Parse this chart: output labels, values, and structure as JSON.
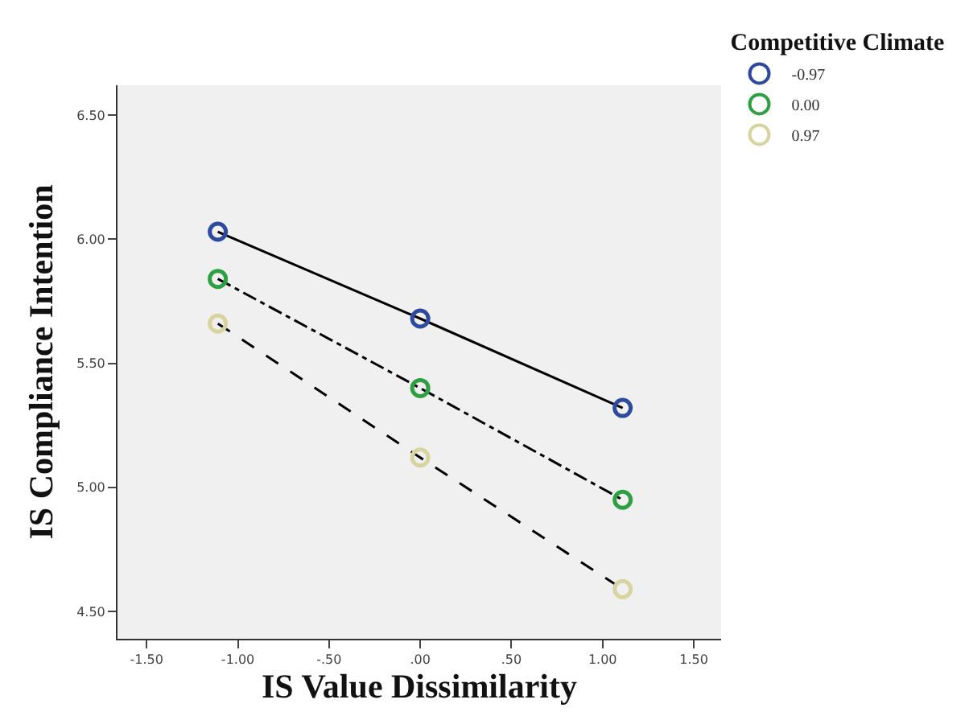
{
  "chart_data": {
    "type": "line",
    "xlabel": "IS Value Dissimilarity",
    "ylabel": "IS Compliance Intention",
    "legend_title": "Competitive Climate",
    "x": [
      -1.11,
      0,
      1.11
    ],
    "series": [
      {
        "name": "-0.97",
        "color": "#2e4a9e",
        "values": [
          6.03,
          5.68,
          5.32
        ],
        "line_style": "solid"
      },
      {
        "name": "0.00",
        "color": "#2ea043",
        "values": [
          5.84,
          5.4,
          4.95
        ],
        "line_style": "dashdot"
      },
      {
        "name": "0.97",
        "color": "#d8d4a0",
        "values": [
          5.66,
          5.12,
          4.59
        ],
        "line_style": "dashed"
      }
    ],
    "xlim": [
      -1.66,
      1.65
    ],
    "xticks": [
      {
        "value": -1.5,
        "label": "-1.50"
      },
      {
        "value": -1.0,
        "label": "-1.00"
      },
      {
        "value": -0.5,
        "label": "-.50"
      },
      {
        "value": 0,
        "label": ".00"
      },
      {
        "value": 0.5,
        "label": ".50"
      },
      {
        "value": 1.0,
        "label": "1.00"
      },
      {
        "value": 1.5,
        "label": "1.50"
      }
    ],
    "ylim": [
      4.39,
      6.62
    ],
    "yticks": [
      {
        "value": 4.5,
        "label": "4.50"
      },
      {
        "value": 5.0,
        "label": "5.00"
      },
      {
        "value": 5.5,
        "label": "5.50"
      },
      {
        "value": 6.0,
        "label": "6.00"
      },
      {
        "value": 6.5,
        "label": "6.50"
      }
    ],
    "marker": "circle",
    "grid": false,
    "legend": "top right"
  }
}
